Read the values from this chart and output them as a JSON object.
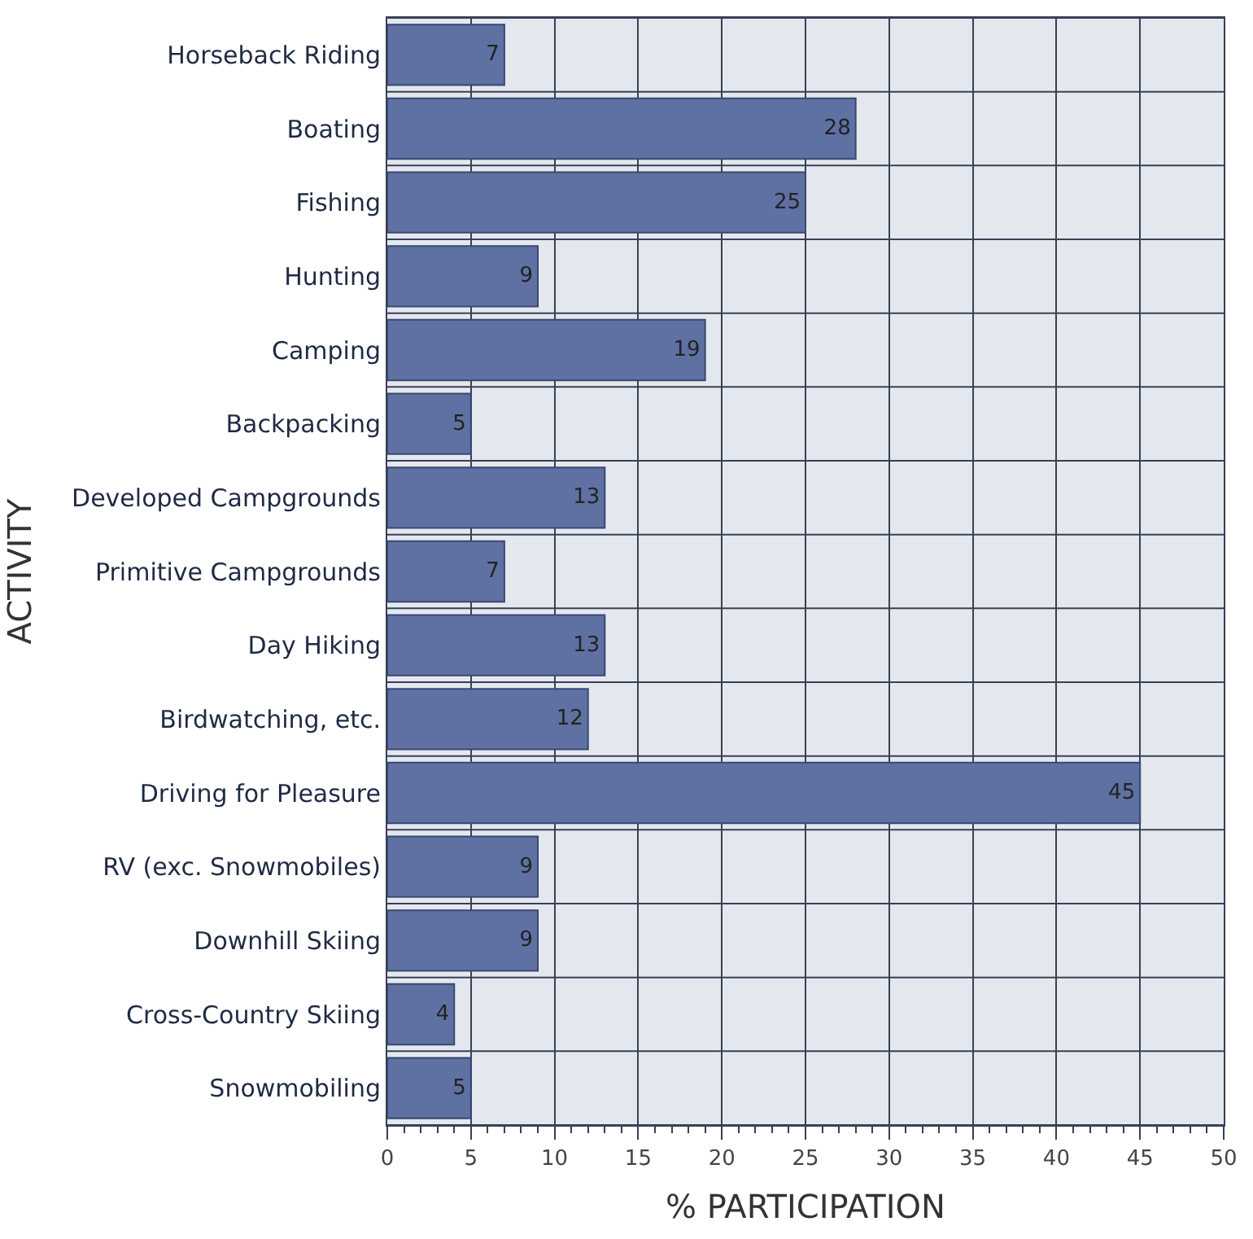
{
  "chart_data": {
    "type": "bar",
    "orientation": "horizontal",
    "xlabel": "% PARTICIPATION",
    "ylabel": "ACTIVITY",
    "categories": [
      "Horseback Riding",
      "Boating",
      "Fishing",
      "Hunting",
      "Camping",
      "Backpacking",
      "Developed Campgrounds",
      "Primitive Campgrounds",
      "Day Hiking",
      "Birdwatching, etc.",
      "Driving for Pleasure",
      "RV (exc. Snowmobiles)",
      "Downhill Skiing",
      "Cross-Country Skiing",
      "Snowmobiling"
    ],
    "values": [
      7,
      28,
      25,
      9,
      19,
      5,
      13,
      7,
      13,
      12,
      45,
      9,
      9,
      4,
      5
    ],
    "color": "#5f71a3",
    "xlim": [
      0,
      50
    ],
    "xticks": [
      0,
      5,
      10,
      15,
      20,
      25,
      30,
      35,
      40,
      45,
      50
    ],
    "grid": true,
    "data_labels": true
  }
}
